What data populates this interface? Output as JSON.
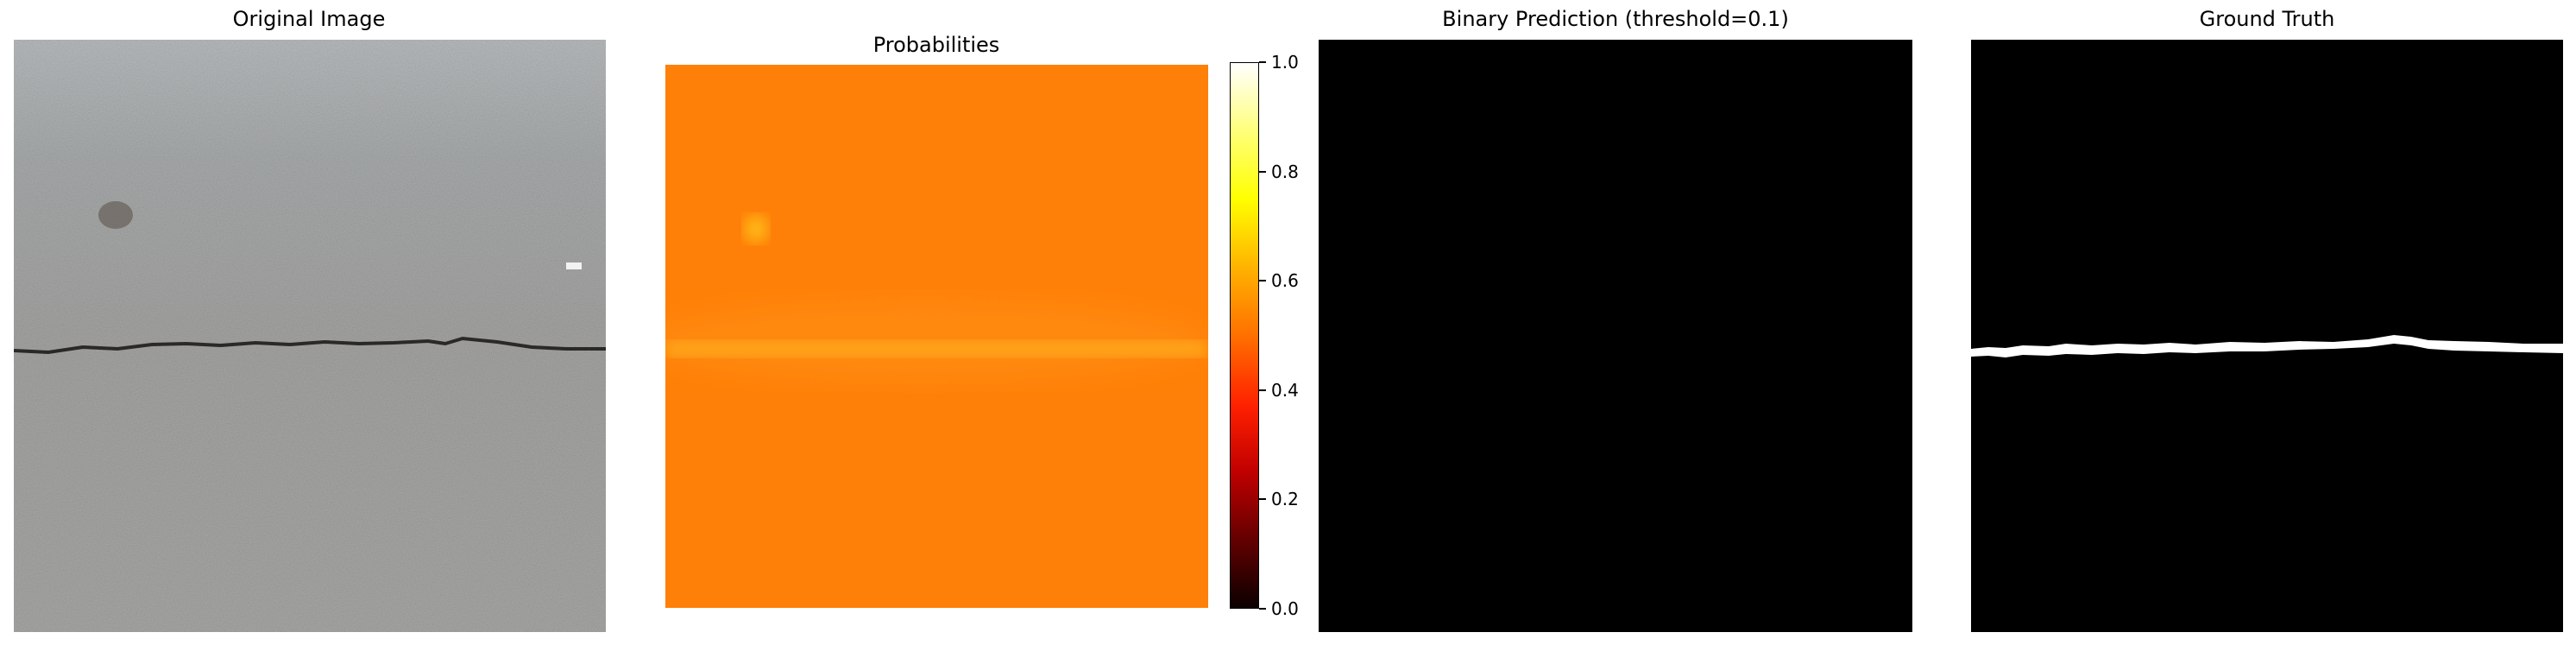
{
  "panels": {
    "original": {
      "title": "Original Image"
    },
    "probabilities": {
      "title": "Probabilities"
    },
    "binary": {
      "title": "Binary Prediction (threshold=0.1)"
    },
    "ground_truth": {
      "title": "Ground Truth"
    }
  },
  "chart_data": [
    {
      "type": "image",
      "title": "Original Image",
      "description_colors": {
        "surface": "#9a9a98",
        "crack": "#2a2826"
      }
    },
    {
      "type": "heatmap",
      "title": "Probabilities",
      "colormap": "hot",
      "colorbar": {
        "range": [
          0.0,
          1.0
        ],
        "ticks": [
          "0.0",
          "0.2",
          "0.4",
          "0.6",
          "0.8",
          "1.0"
        ],
        "tick_values": [
          0.0,
          0.2,
          0.4,
          0.6,
          0.8,
          1.0
        ]
      },
      "background_value": 0.58,
      "crack_band_value": 0.68
    },
    {
      "type": "image",
      "title": "Binary Prediction (threshold=0.1)",
      "threshold": 0.1,
      "fill": "#000000"
    },
    {
      "type": "image",
      "title": "Ground Truth",
      "background": "#000000",
      "mask": "#ffffff"
    }
  ]
}
